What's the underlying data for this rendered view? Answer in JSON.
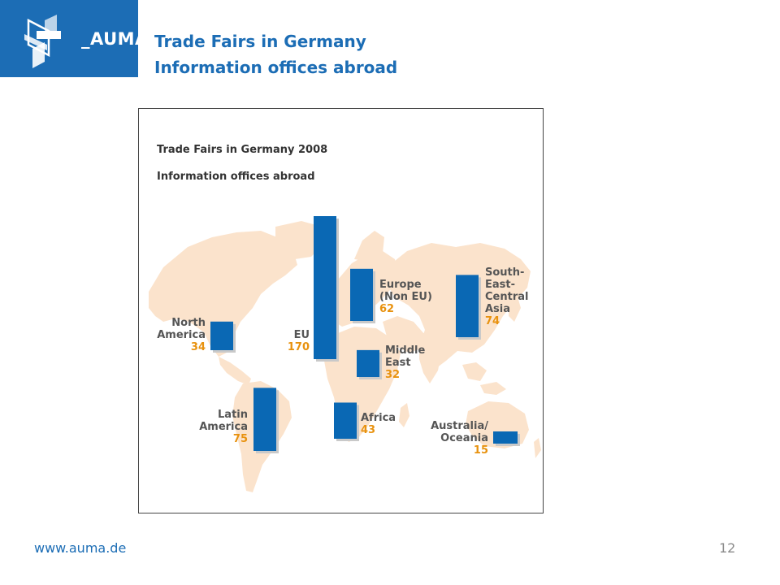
{
  "header": {
    "logo_text": "_AUMA",
    "title_line1": "Trade Fairs in Germany",
    "title_line2": "Information offices abroad"
  },
  "footer": {
    "url": "www.auma.de",
    "page_number": "12"
  },
  "colors": {
    "brand_blue": "#1c6db5",
    "bar_blue": "#0a68b4",
    "value_orange": "#e8920f",
    "map_land": "#fbe3cc",
    "label_gray": "#555555"
  },
  "chart_data": {
    "type": "bar",
    "title": "Trade Fairs in Germany 2008",
    "subtitle": "Information offices abroad",
    "regions": [
      {
        "key": "eu",
        "label_lines": [
          "EU"
        ],
        "value": 170
      },
      {
        "key": "latin_america",
        "label_lines": [
          "Latin",
          "America"
        ],
        "value": 75
      },
      {
        "key": "south_east_central_asia",
        "label_lines": [
          "South-",
          "East-",
          "Central",
          "Asia"
        ],
        "value": 74
      },
      {
        "key": "europe_non_eu",
        "label_lines": [
          "Europe",
          "(Non EU)"
        ],
        "value": 62
      },
      {
        "key": "africa",
        "label_lines": [
          "Africa"
        ],
        "value": 43
      },
      {
        "key": "north_america",
        "label_lines": [
          "North",
          "America"
        ],
        "value": 34
      },
      {
        "key": "middle_east",
        "label_lines": [
          "Middle",
          "East"
        ],
        "value": 32
      },
      {
        "key": "australia_oceania",
        "label_lines": [
          "Australia/",
          "Oceania"
        ],
        "value": 15
      }
    ]
  }
}
